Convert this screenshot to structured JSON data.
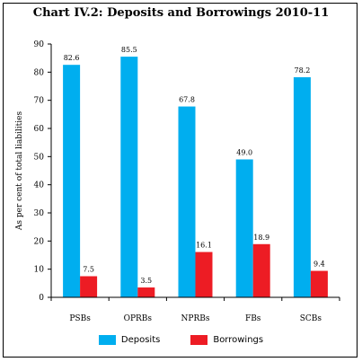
{
  "title": "Chart IV.2: Deposits and Borrowings 2010-11",
  "chart_data": {
    "type": "bar",
    "title": "Chart IV.2: Deposits and Borrowings 2010-11",
    "xlabel": "",
    "ylabel": "As per cent of total liabilities",
    "categories": [
      "PSBs",
      "OPRBs",
      "NPRBs",
      "FBs",
      "SCBs"
    ],
    "ylim": [
      0,
      90
    ],
    "yticks": [
      0,
      10,
      20,
      30,
      40,
      50,
      60,
      70,
      80,
      90
    ],
    "grid": false,
    "legend_position": "bottom",
    "series": [
      {
        "name": "Deposits",
        "color": "#00aeef",
        "values": [
          82.6,
          85.5,
          67.8,
          49.0,
          78.2
        ],
        "labels": [
          "82.6",
          "85.5",
          "67.8",
          "49.0",
          "78.2"
        ]
      },
      {
        "name": "Borrowings",
        "color": "#ed1c24",
        "values": [
          7.5,
          3.5,
          16.1,
          18.9,
          9.4
        ],
        "labels": [
          "7.5",
          "3.5",
          "16.1",
          "18.9",
          "9.4"
        ]
      }
    ]
  }
}
